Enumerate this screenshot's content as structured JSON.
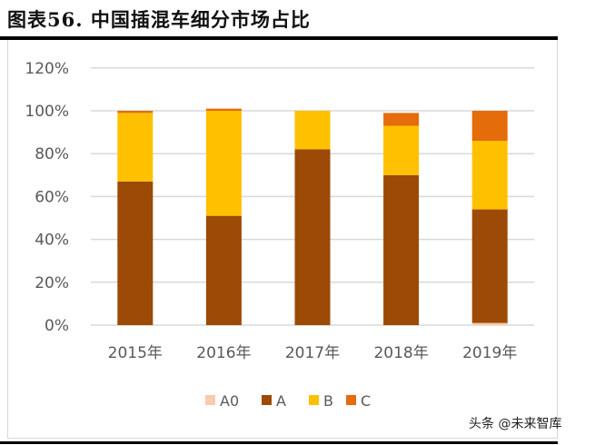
{
  "title": "图表56.  中国插混车细分市场占比",
  "watermark": "头条 @未来智库",
  "chart_data": {
    "type": "bar",
    "stacked": true,
    "categories": [
      "2015年",
      "2016年",
      "2017年",
      "2018年",
      "2019年"
    ],
    "series": [
      {
        "name": "A0",
        "color": "#F8CBAD",
        "values": [
          0,
          0,
          0,
          0,
          1
        ]
      },
      {
        "name": "A",
        "color": "#9C4A06",
        "values": [
          67,
          51,
          82,
          70,
          53
        ]
      },
      {
        "name": "B",
        "color": "#FFC000",
        "values": [
          32,
          49,
          18,
          23,
          32
        ]
      },
      {
        "name": "C",
        "color": "#E46C0A",
        "values": [
          1,
          1,
          0,
          6,
          14
        ]
      }
    ],
    "yticks": [
      "0%",
      "20%",
      "40%",
      "60%",
      "80%",
      "100%",
      "120%"
    ],
    "ylim": [
      0,
      120
    ],
    "grid": true,
    "legend": "bottom"
  }
}
